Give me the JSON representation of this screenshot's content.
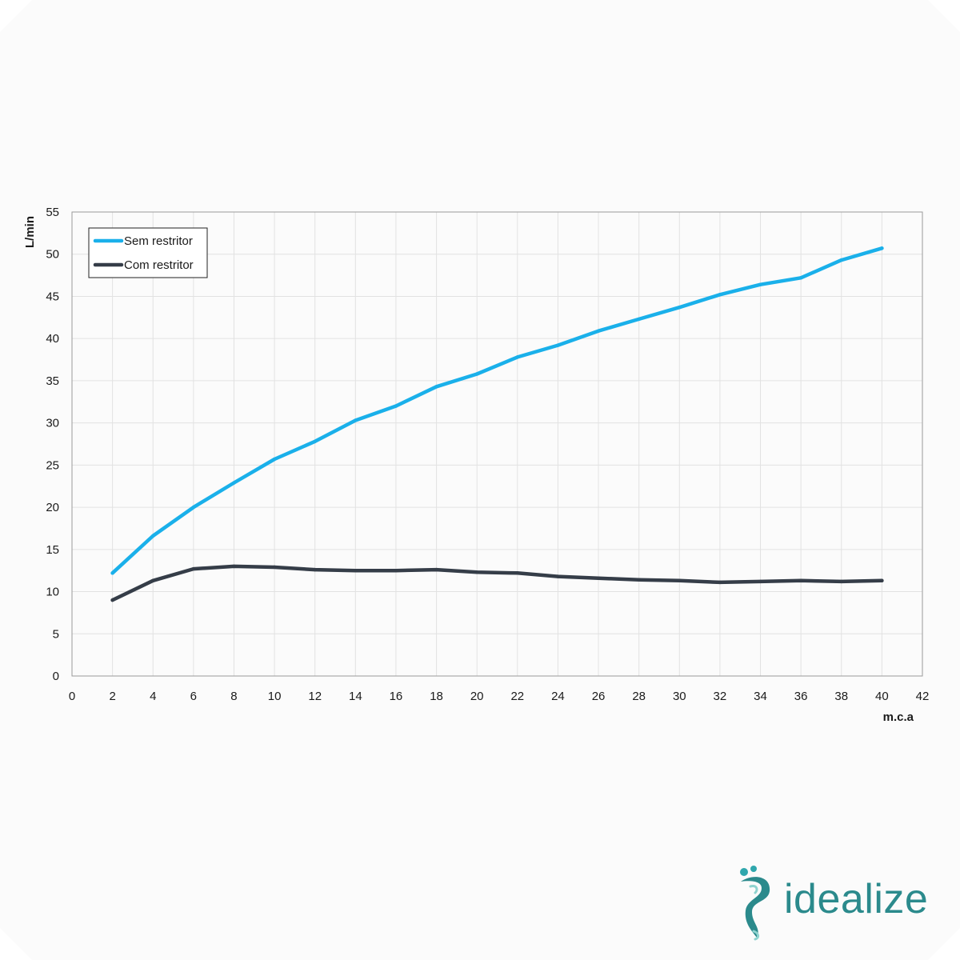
{
  "chart_data": {
    "type": "line",
    "xlabel": "m.c.a",
    "ylabel": "L/min",
    "xlim": [
      0,
      42
    ],
    "ylim": [
      0,
      55
    ],
    "x_ticks": [
      0,
      2,
      4,
      6,
      8,
      10,
      12,
      14,
      16,
      18,
      20,
      22,
      24,
      26,
      28,
      30,
      32,
      34,
      36,
      38,
      40,
      42
    ],
    "y_ticks": [
      0,
      5,
      10,
      15,
      20,
      25,
      30,
      35,
      40,
      45,
      50,
      55
    ],
    "grid": true,
    "legend_position": "top-left",
    "series": [
      {
        "name": "Sem restritor",
        "color": "#1ab0ea",
        "x": [
          2,
          4,
          6,
          8,
          10,
          12,
          14,
          16,
          18,
          20,
          22,
          24,
          26,
          28,
          30,
          32,
          34,
          36,
          38,
          40
        ],
        "values": [
          12.2,
          16.6,
          20.0,
          22.9,
          25.7,
          27.8,
          30.3,
          32.0,
          34.3,
          35.8,
          37.8,
          39.2,
          40.9,
          42.3,
          43.7,
          45.2,
          46.4,
          47.2,
          49.3,
          50.7
        ]
      },
      {
        "name": "Com restritor",
        "color": "#353d48",
        "x": [
          2,
          4,
          6,
          8,
          10,
          12,
          14,
          16,
          18,
          20,
          22,
          24,
          26,
          28,
          30,
          32,
          34,
          36,
          38,
          40
        ],
        "values": [
          9.0,
          11.3,
          12.7,
          13.0,
          12.9,
          12.6,
          12.5,
          12.5,
          12.6,
          12.3,
          12.2,
          11.8,
          11.6,
          11.4,
          11.3,
          11.1,
          11.2,
          11.3,
          11.2,
          11.3
        ]
      }
    ]
  },
  "brand": {
    "name": "idealize",
    "logo_icon": "seahorse-logo-icon",
    "color": "#2b8a8c"
  }
}
